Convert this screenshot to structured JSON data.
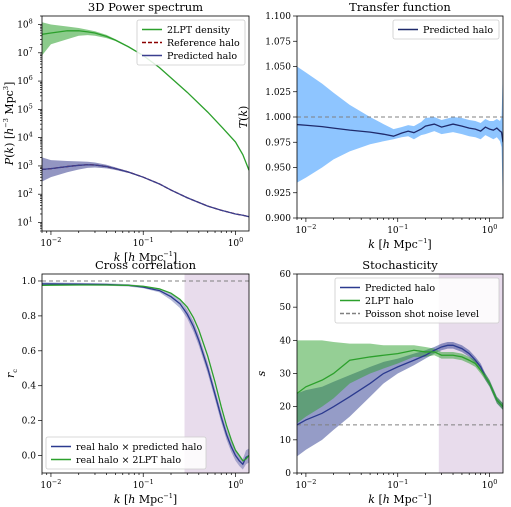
{
  "chart_data": [
    {
      "id": "ps",
      "type": "line",
      "title": "3D Power spectrum",
      "xlabel": "k [h Mpc⁻¹]",
      "ylabel": "P(k) [h⁻³ Mpc³]",
      "xscale": "log",
      "yscale": "log",
      "xlim": [
        0.008,
        1.4
      ],
      "ylim": [
        5,
        200000000
      ],
      "xticks": [
        {
          "v": 0.01,
          "b": "10",
          "e": "−2"
        },
        {
          "v": 0.1,
          "b": "10",
          "e": "−1"
        },
        {
          "v": 1,
          "b": "10",
          "e": "0"
        }
      ],
      "yticks": [
        {
          "v": 10,
          "b": "10",
          "e": "1"
        },
        {
          "v": 100,
          "b": "10",
          "e": "2"
        },
        {
          "v": 1000,
          "b": "10",
          "e": "3"
        },
        {
          "v": 10000,
          "b": "10",
          "e": "4"
        },
        {
          "v": 100000,
          "b": "10",
          "e": "5"
        },
        {
          "v": 1000000,
          "b": "10",
          "e": "6"
        },
        {
          "v": 10000000,
          "b": "10",
          "e": "7"
        },
        {
          "v": 100000000,
          "b": "10",
          "e": "8"
        }
      ],
      "legend_position": "upper right",
      "series": [
        {
          "name": "2LPT density",
          "color": "#2ca02c",
          "style": "solid",
          "x": [
            0.008,
            0.01,
            0.015,
            0.02,
            0.025,
            0.03,
            0.04,
            0.05,
            0.07,
            0.1,
            0.15,
            0.2,
            0.3,
            0.5,
            0.7,
            1.0,
            1.2,
            1.4
          ],
          "y": [
            45000000,
            50000000,
            60000000,
            60000000,
            55000000,
            50000000,
            38000000,
            28000000,
            16000000,
            8000000,
            3000000,
            1300000,
            400000,
            80000,
            25000,
            7000,
            2500,
            700
          ],
          "band_lo": [
            8000000,
            20000000,
            30000000,
            40000000,
            42000000,
            40000000,
            33000000,
            26000000,
            15000000,
            7700000,
            2900000,
            1280000,
            395000,
            79000,
            24800,
            6950,
            2480,
            695
          ],
          "band_hi": [
            120000000,
            100000000,
            85000000,
            75000000,
            65000000,
            58000000,
            43000000,
            30000000,
            17000000,
            8300000,
            3100000,
            1320000,
            405000,
            81000,
            25200,
            7050,
            2520,
            705
          ]
        },
        {
          "name": "Reference halo",
          "color": "#8b0000",
          "style": "dashed",
          "x": [
            0.008,
            0.01,
            0.015,
            0.02,
            0.025,
            0.03,
            0.04,
            0.05,
            0.07,
            0.1,
            0.15,
            0.2,
            0.3,
            0.5,
            0.7,
            1.0,
            1.2,
            1.4
          ],
          "y": [
            750,
            800,
            950,
            1050,
            1100,
            1080,
            950,
            800,
            600,
            400,
            230,
            140,
            75,
            38,
            27,
            20,
            18,
            16
          ]
        },
        {
          "name": "Predicted halo",
          "color": "#3a3f8f",
          "style": "solid",
          "x": [
            0.008,
            0.01,
            0.015,
            0.02,
            0.025,
            0.03,
            0.04,
            0.05,
            0.07,
            0.1,
            0.15,
            0.2,
            0.3,
            0.5,
            0.7,
            1.0,
            1.2,
            1.4
          ],
          "y": [
            750,
            800,
            950,
            1050,
            1100,
            1080,
            950,
            800,
            600,
            400,
            230,
            140,
            75,
            38,
            27,
            20,
            18,
            16
          ],
          "band_lo": [
            280,
            400,
            600,
            750,
            850,
            880,
            820,
            720,
            560,
            380,
            222,
            136,
            73,
            37,
            26.5,
            19.6,
            17.6,
            15.6
          ],
          "band_hi": [
            2000,
            1600,
            1500,
            1450,
            1400,
            1320,
            1100,
            890,
            640,
            420,
            238,
            144,
            77,
            39,
            27.5,
            20.4,
            18.4,
            16.4
          ]
        }
      ]
    },
    {
      "id": "tf",
      "type": "line",
      "title": "Transfer function",
      "xlabel": "k [h Mpc⁻¹]",
      "ylabel": "T(k)",
      "xscale": "log",
      "yscale": "linear",
      "xlim": [
        0.008,
        1.4
      ],
      "ylim": [
        0.9,
        1.1
      ],
      "xticks": [
        {
          "v": 0.01,
          "b": "10",
          "e": "−2"
        },
        {
          "v": 0.1,
          "b": "10",
          "e": "−1"
        },
        {
          "v": 1,
          "b": "10",
          "e": "0"
        }
      ],
      "yticks": [
        {
          "v": 0.9,
          "t": "0.900"
        },
        {
          "v": 0.925,
          "t": "0.925"
        },
        {
          "v": 0.95,
          "t": "0.950"
        },
        {
          "v": 0.975,
          "t": "0.975"
        },
        {
          "v": 1.0,
          "t": "1.000"
        },
        {
          "v": 1.025,
          "t": "1.025"
        },
        {
          "v": 1.05,
          "t": "1.050"
        },
        {
          "v": 1.075,
          "t": "1.075"
        },
        {
          "v": 1.1,
          "t": "1.100"
        }
      ],
      "hline": {
        "y": 1.0,
        "color": "#808080",
        "style": "dashed"
      },
      "legend_position": "upper right",
      "series": [
        {
          "name": "Predicted halo",
          "color": "#1f2a6b",
          "style": "solid",
          "x": [
            0.008,
            0.01,
            0.015,
            0.02,
            0.03,
            0.05,
            0.07,
            0.09,
            0.11,
            0.13,
            0.15,
            0.18,
            0.2,
            0.25,
            0.3,
            0.4,
            0.5,
            0.6,
            0.7,
            0.8,
            0.9,
            1.0,
            1.1,
            1.2,
            1.3,
            1.35,
            1.4
          ],
          "y": [
            0.9925,
            0.9918,
            0.9905,
            0.989,
            0.987,
            0.985,
            0.983,
            0.981,
            0.984,
            0.986,
            0.9845,
            0.988,
            0.991,
            0.993,
            0.99,
            0.993,
            0.991,
            0.989,
            0.988,
            0.986,
            0.99,
            0.988,
            0.987,
            0.989,
            0.986,
            0.985,
            0.975
          ],
          "band_lo": [
            0.935,
            0.94,
            0.95,
            0.958,
            0.966,
            0.973,
            0.976,
            0.978,
            0.98,
            0.981,
            0.978,
            0.982,
            0.983,
            0.986,
            0.983,
            0.985,
            0.983,
            0.981,
            0.98,
            0.978,
            0.982,
            0.98,
            0.978,
            0.98,
            0.976,
            0.97,
            0.91
          ],
          "band_hi": [
            1.05,
            1.044,
            1.033,
            1.024,
            1.012,
            1.0,
            0.993,
            0.988,
            0.99,
            0.992,
            0.991,
            0.995,
            0.999,
            1.0,
            0.997,
            1.0,
            0.999,
            0.997,
            0.996,
            0.994,
            0.998,
            0.996,
            0.996,
            0.998,
            0.996,
            1.0,
            1.05
          ]
        }
      ]
    },
    {
      "id": "cc",
      "type": "line",
      "title": "Cross correlation",
      "xlabel": "k [h Mpc⁻¹]",
      "ylabel": "r_c",
      "xscale": "log",
      "yscale": "linear",
      "xlim": [
        0.008,
        1.4
      ],
      "ylim": [
        -0.1,
        1.04
      ],
      "xticks": [
        {
          "v": 0.01,
          "b": "10",
          "e": "−2"
        },
        {
          "v": 0.1,
          "b": "10",
          "e": "−1"
        },
        {
          "v": 1,
          "b": "10",
          "e": "0"
        }
      ],
      "yticks": [
        {
          "v": 0.0,
          "t": "0.0"
        },
        {
          "v": 0.2,
          "t": "0.2"
        },
        {
          "v": 0.4,
          "t": "0.4"
        },
        {
          "v": 0.6,
          "t": "0.6"
        },
        {
          "v": 0.8,
          "t": "0.8"
        },
        {
          "v": 1.0,
          "t": "1.0"
        }
      ],
      "hline": {
        "y": 1.0,
        "color": "#808080",
        "style": "dashed"
      },
      "shade": {
        "x0": 0.28,
        "x1": 1.4,
        "color": "#e8dcec"
      },
      "legend_position": "lower left",
      "series": [
        {
          "name": "real halo × predicted halo",
          "color": "#2b3a8f",
          "style": "solid",
          "x": [
            0.008,
            0.01,
            0.02,
            0.04,
            0.07,
            0.1,
            0.15,
            0.2,
            0.25,
            0.3,
            0.35,
            0.4,
            0.5,
            0.6,
            0.7,
            0.8,
            0.9,
            1.0,
            1.1,
            1.2,
            1.3,
            1.4
          ],
          "y": [
            0.983,
            0.983,
            0.982,
            0.98,
            0.975,
            0.965,
            0.945,
            0.91,
            0.87,
            0.81,
            0.74,
            0.66,
            0.5,
            0.35,
            0.22,
            0.12,
            0.05,
            0.0,
            -0.03,
            -0.05,
            -0.01,
            0.0
          ],
          "band_lo": [
            0.973,
            0.975,
            0.975,
            0.973,
            0.968,
            0.958,
            0.935,
            0.89,
            0.845,
            0.785,
            0.71,
            0.63,
            0.47,
            0.32,
            0.19,
            0.09,
            0.02,
            -0.03,
            -0.06,
            -0.08,
            -0.05,
            -0.04
          ],
          "band_hi": [
            0.993,
            0.991,
            0.989,
            0.987,
            0.982,
            0.972,
            0.955,
            0.93,
            0.895,
            0.835,
            0.77,
            0.69,
            0.53,
            0.38,
            0.25,
            0.15,
            0.08,
            0.03,
            0.0,
            -0.02,
            0.03,
            0.04
          ]
        },
        {
          "name": "real halo × 2LPT halo",
          "color": "#2ca02c",
          "style": "solid",
          "x": [
            0.008,
            0.01,
            0.02,
            0.04,
            0.07,
            0.1,
            0.15,
            0.2,
            0.25,
            0.3,
            0.35,
            0.4,
            0.5,
            0.6,
            0.7,
            0.8,
            0.9,
            1.0,
            1.1,
            1.2,
            1.3,
            1.4
          ],
          "y": [
            0.975,
            0.976,
            0.977,
            0.977,
            0.975,
            0.97,
            0.955,
            0.93,
            0.895,
            0.85,
            0.79,
            0.72,
            0.57,
            0.42,
            0.28,
            0.17,
            0.09,
            0.03,
            0.0,
            -0.03,
            -0.02,
            0.0
          ]
        }
      ]
    },
    {
      "id": "st",
      "type": "line",
      "title": "Stochasticity",
      "xlabel": "k [h Mpc⁻¹]",
      "ylabel": "s",
      "xscale": "log",
      "yscale": "linear",
      "xlim": [
        0.008,
        1.4
      ],
      "ylim": [
        0,
        60
      ],
      "xticks": [
        {
          "v": 0.01,
          "b": "10",
          "e": "−2"
        },
        {
          "v": 0.1,
          "b": "10",
          "e": "−1"
        },
        {
          "v": 1,
          "b": "10",
          "e": "0"
        }
      ],
      "yticks": [
        {
          "v": 0,
          "t": "0"
        },
        {
          "v": 10,
          "t": "10"
        },
        {
          "v": 20,
          "t": "20"
        },
        {
          "v": 30,
          "t": "30"
        },
        {
          "v": 40,
          "t": "40"
        },
        {
          "v": 50,
          "t": "50"
        },
        {
          "v": 60,
          "t": "60"
        }
      ],
      "hline": {
        "y": 14.5,
        "color": "#808080",
        "style": "dashed",
        "name": "Poisson shot noise level"
      },
      "shade": {
        "x0": 0.28,
        "x1": 1.4,
        "color": "#e8dcec"
      },
      "legend_position": "upper right",
      "series": [
        {
          "name": "Predicted halo",
          "color": "#2b3a8f",
          "style": "solid",
          "x": [
            0.008,
            0.01,
            0.015,
            0.02,
            0.03,
            0.05,
            0.07,
            0.1,
            0.15,
            0.2,
            0.25,
            0.3,
            0.35,
            0.4,
            0.5,
            0.6,
            0.7,
            0.8,
            0.9,
            1.0,
            1.2,
            1.4
          ],
          "y": [
            14.5,
            16,
            18,
            20,
            23,
            27,
            30,
            32,
            34,
            35.5,
            37,
            38,
            38.5,
            38.5,
            37.5,
            36,
            34,
            32,
            29,
            27,
            22,
            20
          ],
          "band_lo": [
            5,
            7,
            10,
            13,
            17,
            23,
            27,
            30,
            32.5,
            34.5,
            36,
            37,
            37.5,
            37.5,
            36.5,
            35,
            33,
            31,
            28,
            26,
            21,
            19
          ],
          "band_hi": [
            24,
            25,
            26,
            27.5,
            29.5,
            32,
            33.5,
            34.5,
            36,
            37,
            38,
            39,
            39.5,
            39.5,
            38.5,
            37,
            35,
            33,
            30,
            28,
            23,
            21
          ]
        },
        {
          "name": "2LPT halo",
          "color": "#2ca02c",
          "style": "solid",
          "x": [
            0.008,
            0.01,
            0.015,
            0.02,
            0.03,
            0.05,
            0.07,
            0.1,
            0.15,
            0.2,
            0.25,
            0.3,
            0.35,
            0.4,
            0.5,
            0.6,
            0.7,
            0.8,
            0.9,
            1.0,
            1.2,
            1.4
          ],
          "y": [
            24,
            26,
            28,
            30,
            34,
            35,
            35.5,
            36,
            37,
            36.5,
            36.5,
            35.5,
            35.5,
            35.5,
            35,
            34,
            33,
            31,
            29,
            27,
            22,
            20
          ],
          "band_lo": [
            15,
            17,
            20,
            22.5,
            27,
            30,
            31.5,
            33,
            35,
            35,
            35.5,
            34.5,
            34.5,
            34.5,
            34,
            33,
            32,
            30,
            28,
            26,
            21,
            19
          ],
          "band_hi": [
            40,
            40,
            40,
            39.5,
            39,
            39,
            38.5,
            38.5,
            38.5,
            38,
            37.5,
            36.5,
            36.5,
            36.5,
            36,
            35,
            34,
            32,
            30,
            28,
            23,
            21
          ]
        }
      ]
    }
  ]
}
